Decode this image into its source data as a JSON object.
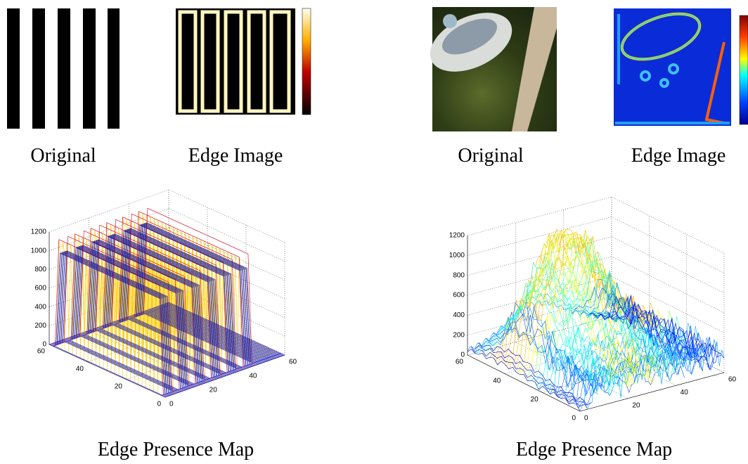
{
  "panels": [
    {
      "original_caption": "Original",
      "edge_caption": "Edge Image",
      "map_caption": "Edge Presence Map",
      "zticks": [
        0,
        200,
        400,
        600,
        800,
        1000,
        1200
      ],
      "yticks": [
        0,
        20,
        40,
        60
      ],
      "xticks": [
        0,
        20,
        40,
        60
      ]
    },
    {
      "original_caption": "Original",
      "edge_caption": "Edge Image",
      "map_caption": "Edge Presence Map",
      "zticks": [
        0,
        200,
        400,
        600,
        800,
        1000,
        1200
      ],
      "yticks": [
        0,
        20,
        40,
        60
      ],
      "xticks": [
        0,
        20,
        40,
        60
      ]
    }
  ]
}
